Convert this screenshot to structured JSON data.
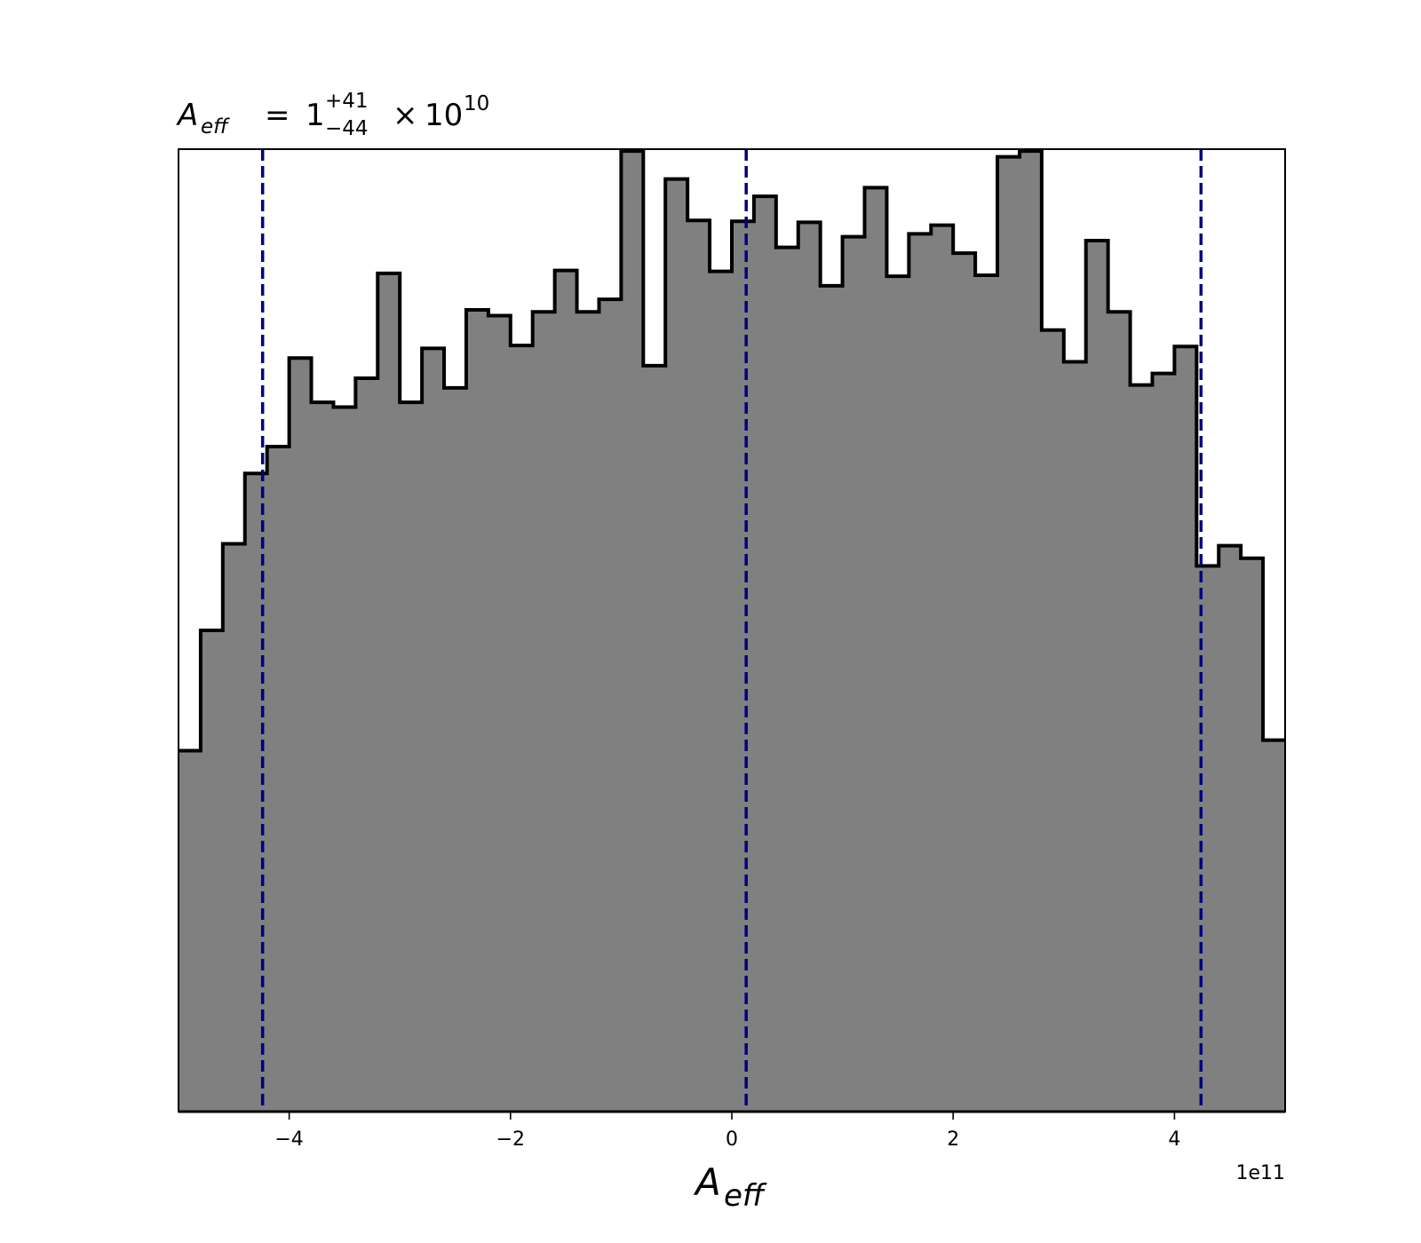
{
  "chart_data": {
    "type": "histogram",
    "title": {
      "symbol": "A",
      "subscript": "eff",
      "equals": "=",
      "value": "1",
      "upper": "+41",
      "lower": "−44",
      "times": "×",
      "base": "10",
      "exponent": "10"
    },
    "xlabel": {
      "symbol": "A",
      "subscript": "eff"
    },
    "x_offset_label": "1e11",
    "x_scale": 100000000000.0,
    "xlim": [
      -5.0,
      5.0
    ],
    "ylim": [
      0,
      1.0
    ],
    "y_ticks_visible": false,
    "x_ticks": [
      {
        "value": -4,
        "label": "−4"
      },
      {
        "value": -2,
        "label": "−2"
      },
      {
        "value": 0,
        "label": "0"
      },
      {
        "value": 2,
        "label": "2"
      },
      {
        "value": 4,
        "label": "4"
      }
    ],
    "bin_edges_start": -5.0,
    "bin_width": 0.2,
    "counts": [
      0.375,
      0.5,
      0.59,
      0.663,
      0.691,
      0.783,
      0.737,
      0.732,
      0.762,
      0.871,
      0.737,
      0.793,
      0.752,
      0.833,
      0.827,
      0.796,
      0.831,
      0.874,
      0.831,
      0.844,
      0.998,
      0.775,
      0.969,
      0.926,
      0.873,
      0.925,
      0.951,
      0.898,
      0.924,
      0.858,
      0.909,
      0.96,
      0.868,
      0.912,
      0.921,
      0.892,
      0.869,
      0.992,
      0.998,
      0.812,
      0.779,
      0.905,
      0.831,
      0.755,
      0.767,
      0.795,
      0.567,
      0.588,
      0.575,
      0.386
    ],
    "fill_color": "#808080",
    "edge_color": "#000000",
    "quantile_lines": [
      {
        "value": -4.24,
        "label": "lower"
      },
      {
        "value": 0.13,
        "label": "median"
      },
      {
        "value": 4.24,
        "label": "upper"
      }
    ],
    "quantile_color": "#00007f"
  }
}
